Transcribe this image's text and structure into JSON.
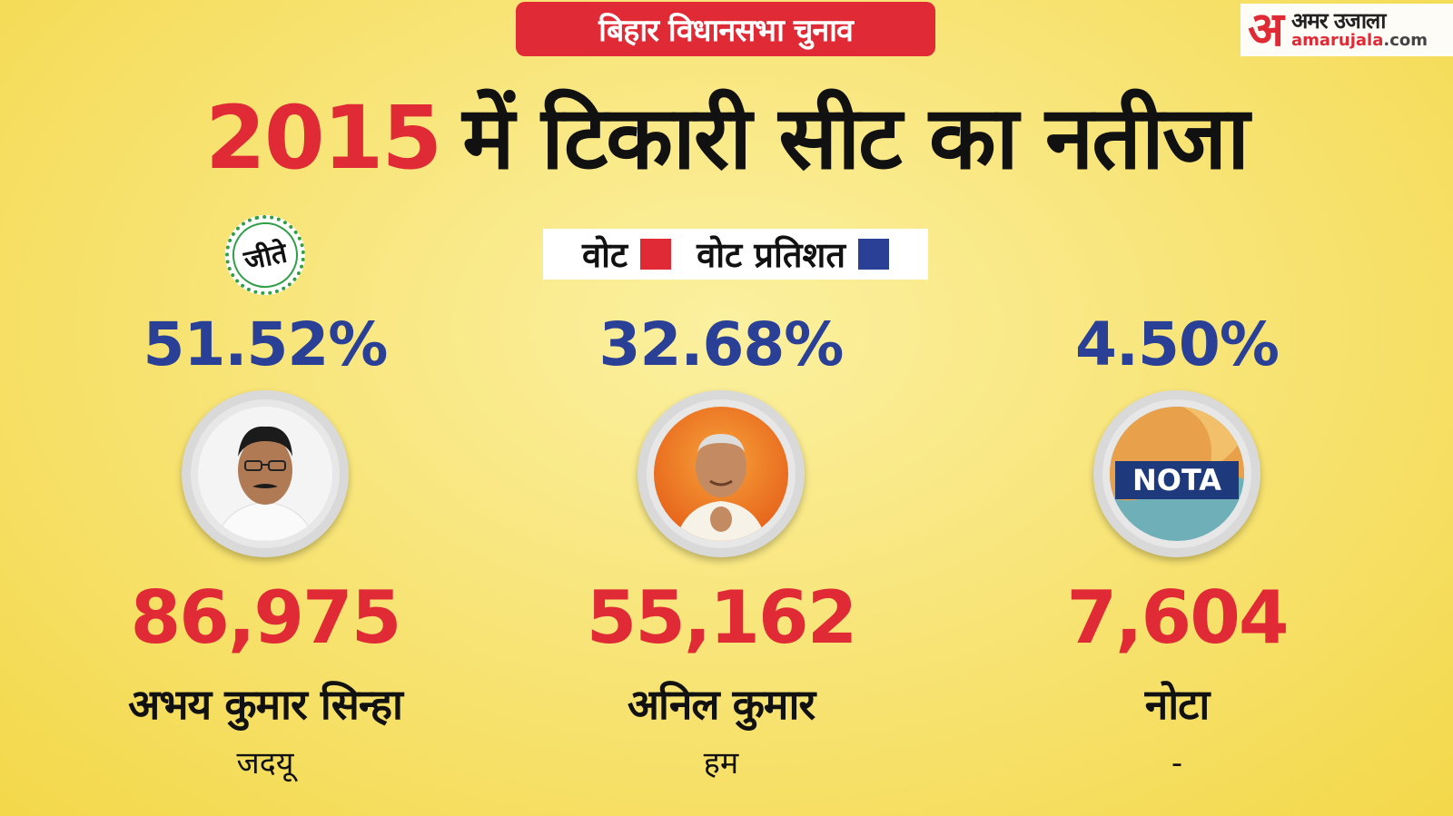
{
  "banner": {
    "text": "बिहार विधानसभा चुनाव"
  },
  "logo": {
    "mark": "अ",
    "hindi": "अमर उजाला",
    "domain": "amarujala",
    "domain_tld": ".com"
  },
  "headline": {
    "year": "2015",
    "text": "में  टिकारी सीट का नतीजा"
  },
  "legend": {
    "votes_label": "वोट",
    "percent_label": "वोट प्रतिशत"
  },
  "winner_seal": {
    "text": "जीते"
  },
  "colors": {
    "accent_red": "#e02a35",
    "accent_blue": "#2a3f96",
    "seal_green": "#2f9f48"
  },
  "candidates": [
    {
      "percent": "51.52%",
      "votes": "86,975",
      "name": "अभय कुमार सिन्हा",
      "party": "जदयू",
      "photo_icon": "person-photo"
    },
    {
      "percent": "32.68%",
      "votes": "55,162",
      "name": "अनिल कुमार",
      "party": "हम",
      "photo_icon": "person-photo"
    },
    {
      "percent": "4.50%",
      "votes": "7,604",
      "name": "नोटा",
      "party": "-",
      "badge": "NOTA"
    }
  ]
}
